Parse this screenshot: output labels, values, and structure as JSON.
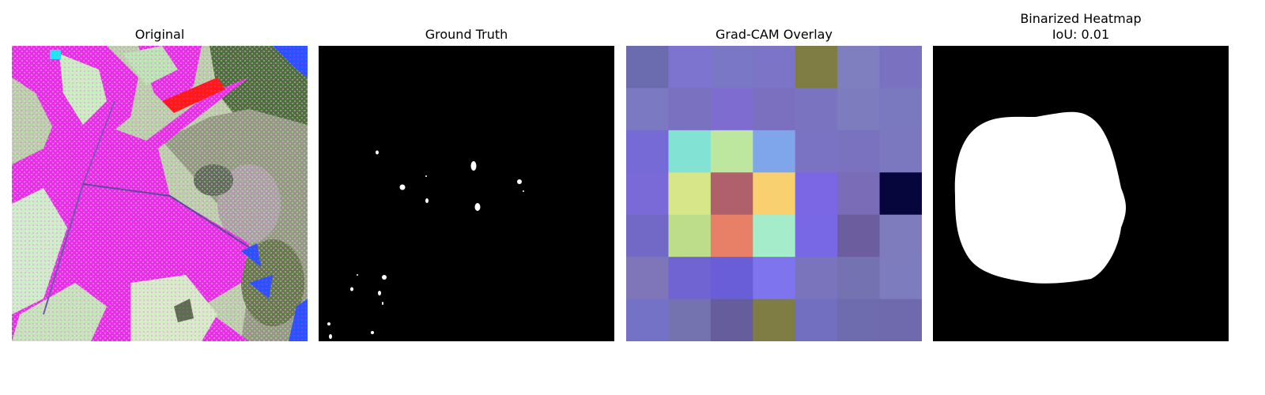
{
  "panels": [
    {
      "title": "Original"
    },
    {
      "title": "Ground Truth"
    },
    {
      "title": "Grad-CAM Overlay"
    },
    {
      "title": "Binarized Heatmap",
      "subtitle": "IoU: 0.01"
    }
  ],
  "gradcam_grid": {
    "rows": 7,
    "cols": 7,
    "colors": [
      [
        "#6b6bb0",
        "#7d74d0",
        "#7a78c6",
        "#7c74c6",
        "#7f7c44",
        "#7f7fc0",
        "#7a72c0"
      ],
      [
        "#7b79c2",
        "#7a72c0",
        "#7f6cd0",
        "#7b6fc0",
        "#7a74c0",
        "#7c7cbe",
        "#7a78be"
      ],
      [
        "#766ad6",
        "#82e2d4",
        "#bde79f",
        "#7fa5ea",
        "#7a72c2",
        "#7a72bf",
        "#7b78c0"
      ],
      [
        "#7a6ad8",
        "#d7e688",
        "#b0606a",
        "#f8d070",
        "#7b66e4",
        "#7a6cb6",
        "#06063c"
      ],
      [
        "#7268c6",
        "#bedd8a",
        "#e88068",
        "#a4ecca",
        "#7868e6",
        "#6c5e9e",
        "#7f7cbe"
      ],
      [
        "#7e76b8",
        "#7064d2",
        "#6a5ed8",
        "#7e74ee",
        "#7a74bc",
        "#7472b0",
        "#7c7cbe"
      ],
      [
        "#7472c6",
        "#7572b0",
        "#665e9c",
        "#7f7c44",
        "#726ec0",
        "#6e6cae",
        "#6f69ae"
      ]
    ]
  }
}
